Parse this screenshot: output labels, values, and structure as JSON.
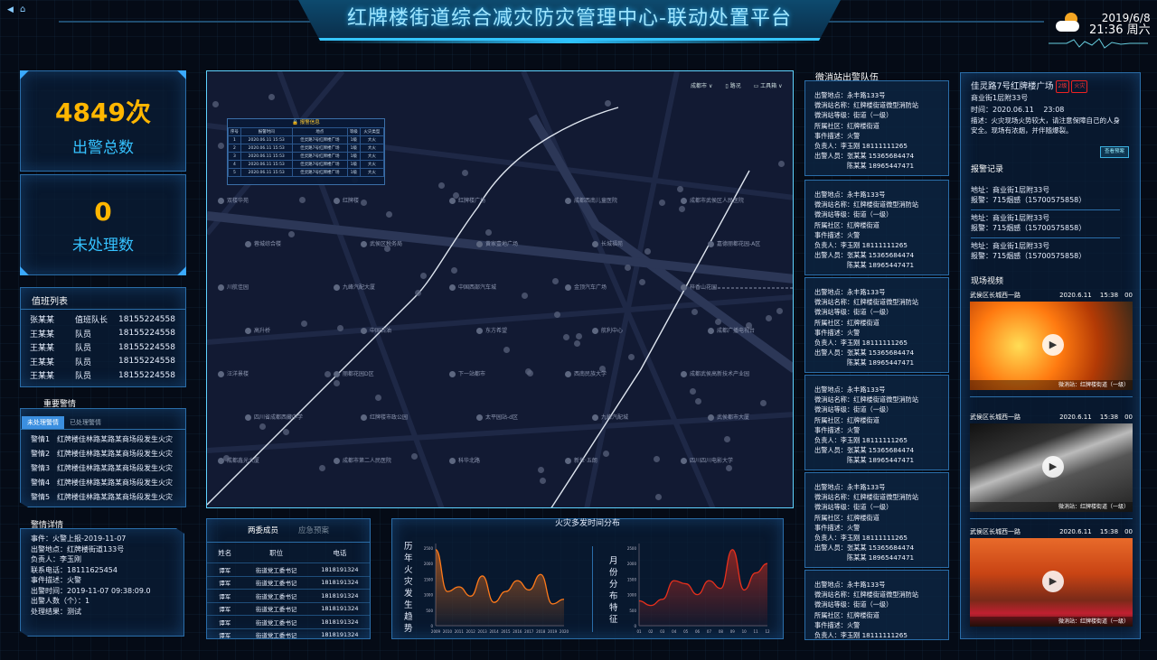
{
  "header": {
    "title": "红牌楼街道综合减灾防灾管理中心-联动处置平台",
    "date": "2019/6/8",
    "time": "21:36 周六",
    "weather_icon": "sun-cloud-icon",
    "nav_icons": [
      "back-icon",
      "home-icon"
    ]
  },
  "kpi": [
    {
      "value": "4849次",
      "label": "出警总数"
    },
    {
      "value": "0",
      "label": "未处理数"
    }
  ],
  "duty": {
    "title": "值班列表",
    "rows": [
      {
        "name": "张某某",
        "role": "值班队长",
        "phone": "18155224558"
      },
      {
        "name": "王某某",
        "role": "队员",
        "phone": "18155224558"
      },
      {
        "name": "王某某",
        "role": "队员",
        "phone": "18155224558"
      },
      {
        "name": "王某某",
        "role": "队员",
        "phone": "18155224558"
      },
      {
        "name": "王某某",
        "role": "队员",
        "phone": "18155224558"
      }
    ]
  },
  "alerts": {
    "title": "重要警情",
    "tabs": [
      "未处理警情",
      "已处理警情"
    ],
    "active_tab": 0,
    "items": [
      {
        "id": "警情1",
        "text": "红牌楼佳林路某路某商场段发生火灾"
      },
      {
        "id": "警情2",
        "text": "红牌楼佳林路某路某商场段发生火灾"
      },
      {
        "id": "警情3",
        "text": "红牌楼佳林路某路某商场段发生火灾"
      },
      {
        "id": "警情4",
        "text": "红牌楼佳林路某路某商场段发生火灾"
      },
      {
        "id": "警情5",
        "text": "红牌楼佳林路某路某商场段发生火灾"
      }
    ]
  },
  "detail": {
    "title": "警情详情",
    "lines": [
      "事件：火警上报-2019-11-07",
      "出警地点：红牌楼街道133号",
      "负责人：李玉刚",
      "联系电话：18111625454",
      "事件描述：火警",
      "出警时间：2019-11-07 09:38:09.0",
      "出警人数（个）：1",
      "处理结果：测试"
    ]
  },
  "map": {
    "controls": {
      "city": "成都市",
      "city_caret": "∨",
      "layers": "路况",
      "toolbox": "工具箱"
    },
    "popup": {
      "title": "报警信息",
      "columns": [
        "序号",
        "报警时间",
        "地点",
        "等级",
        "火灾类型"
      ],
      "rows": [
        [
          "1",
          "2020.06.11 15:53",
          "佳灵路7号红牌楼广场",
          "1级",
          "大火"
        ],
        [
          "2",
          "2020.06.11 15:53",
          "佳灵路7号红牌楼广场",
          "1级",
          "大火"
        ],
        [
          "3",
          "2020.06.11 15:53",
          "佳灵路7号红牌楼广场",
          "1级",
          "大火"
        ],
        [
          "4",
          "2020.06.11 15:53",
          "佳灵路7号红牌楼广场",
          "1级",
          "大火"
        ],
        [
          "5",
          "2020.06.11 15:53",
          "佳灵路7号红牌楼广场",
          "1级",
          "大火"
        ]
      ]
    },
    "labels": [
      "双楼华苑",
      "红牌楼",
      "红牌楼广场",
      "成都西南儿童医院",
      "成都市武侯区人民医院",
      "蓉城综合楼",
      "武侯区税务局",
      "黄家壹地广场",
      "长城福苑",
      "嘉德丽都花园-A区",
      "川航佳园",
      "九峰汽配大厦",
      "中国西部汽车城",
      "金顶汽车广场",
      "梓香山花园",
      "高升桥",
      "中国石油",
      "东方希望",
      "航利中心",
      "成都广播电视台",
      "汪洋景楼",
      "丽都花园D区",
      "下一站都市",
      "西南民族大学",
      "成都武侯高新技术产业园",
      "四川省成都西藏中学",
      "红牌楼市政公园",
      "太平园站-d区",
      "九峰汽配城",
      "武侯都市大厦",
      "成都鑫光大厦",
      "成都市第二人民医院",
      "科华北路",
      "新世·五朗",
      "四川四川电影大学"
    ]
  },
  "committee": {
    "tabs": [
      "两委成员",
      "应急预案"
    ],
    "active_tab": 0,
    "columns": [
      "姓名",
      "职位",
      "电话"
    ],
    "rows": [
      [
        "谭军",
        "街道党工委书记",
        "1818191324"
      ],
      [
        "谭军",
        "街道党工委书记",
        "1818191324"
      ],
      [
        "谭军",
        "街道党工委书记",
        "1818191324"
      ],
      [
        "谭军",
        "街道党工委书记",
        "1818191324"
      ],
      [
        "谭军",
        "街道党工委书记",
        "1818191324"
      ],
      [
        "谭军",
        "街道党工委书记",
        "1818191324"
      ]
    ]
  },
  "fire_section": {
    "title": "火灾多发时间分布"
  },
  "chart_data": [
    {
      "type": "area",
      "title": "历年火灾发生趋势",
      "x": [
        "2009",
        "2010",
        "2011",
        "2012",
        "2013",
        "2014",
        "2015",
        "2016",
        "2017",
        "2018",
        "2019",
        "2020"
      ],
      "values": [
        2450,
        1100,
        1250,
        950,
        1600,
        750,
        1100,
        1450,
        1150,
        1650,
        700,
        850
      ],
      "ylim": [
        0,
        2500
      ],
      "yticks": [
        "0",
        "500",
        "1000",
        "1500",
        "2000",
        "2500"
      ],
      "color": "#ff7a1a",
      "grid": false
    },
    {
      "type": "area",
      "title": "月份分布特征",
      "x": [
        "01",
        "02",
        "03",
        "04",
        "05",
        "06",
        "07",
        "08",
        "09",
        "10",
        "11",
        "12"
      ],
      "values": [
        800,
        650,
        850,
        1450,
        1350,
        1000,
        1450,
        1200,
        2450,
        1150,
        1700,
        2000
      ],
      "ylim": [
        0,
        2500
      ],
      "yticks": [
        "0",
        "500",
        "1000",
        "1500",
        "2000",
        "2500"
      ],
      "color": "#e8301c",
      "grid": false
    }
  ],
  "stations": {
    "title": "微消站出警队伍",
    "items": [
      {
        "lines": [
          "出警地点：永丰路133号",
          "微消站名称：红牌楼街道微型消防站",
          "微消站等级：街道（一级）",
          "所属社区：红牌楼街道",
          "事件描述：火警",
          "负责人：李玉刚 18111111265",
          "出警人员：张某某 15365684474",
          "　　　　　陈某某 18965447471"
        ]
      },
      {
        "lines": [
          "出警地点：永丰路133号",
          "微消站名称：红牌楼街道微型消防站",
          "微消站等级：街道（一级）",
          "所属社区：红牌楼街道",
          "事件描述：火警",
          "负责人：李玉刚 18111111265",
          "出警人员：张某某 15365684474",
          "　　　　　陈某某 18965447471"
        ]
      },
      {
        "lines": [
          "出警地点：永丰路133号",
          "微消站名称：红牌楼街道微型消防站",
          "微消站等级：街道（一级）",
          "所属社区：红牌楼街道",
          "事件描述：火警",
          "负责人：李玉刚 18111111265",
          "出警人员：张某某 15365684474",
          "　　　　　陈某某 18965447471"
        ]
      },
      {
        "lines": [
          "出警地点：永丰路133号",
          "微消站名称：红牌楼街道微型消防站",
          "微消站等级：街道（一级）",
          "所属社区：红牌楼街道",
          "事件描述：火警",
          "负责人：李玉刚 18111111265",
          "出警人员：张某某 15365684474",
          "　　　　　陈某某 18965447471"
        ]
      },
      {
        "lines": [
          "出警地点：永丰路133号",
          "微消站名称：红牌楼街道微型消防站",
          "微消站等级：街道（一级）",
          "所属社区：红牌楼街道",
          "事件描述：火警",
          "负责人：李玉刚 18111111265",
          "出警人员：张某某 15365684474",
          "　　　　　陈某某 18965447471"
        ]
      },
      {
        "lines": [
          "出警地点：永丰路133号",
          "微消站名称：红牌楼街道微型消防站",
          "微消站等级：街道（一级）",
          "所属社区：红牌楼街道",
          "事件描述：火警",
          "负责人：李玉刚 18111111265"
        ]
      }
    ]
  },
  "incident": {
    "title": "佳灵路7号红牌楼广场",
    "badges": [
      "2级",
      "火灾"
    ],
    "address": "商业街1层附33号",
    "time": "时间：2020.06.11　 23:08",
    "desc": "描述：火灾现场火势较大，请注意保障自己的人身安全。现场有浓烟，并伴随爆裂。",
    "plan_button": "查看预案"
  },
  "reports": {
    "title": "报警记录",
    "items": [
      {
        "addr": "地址：商业街1层附33号",
        "call": "报警：715烟感（15700575858）"
      },
      {
        "addr": "地址：商业街1层附33号",
        "call": "报警：715烟感（15700575858）"
      },
      {
        "addr": "地址：商业街1层附33号",
        "call": "报警：715烟感（15700575858）"
      }
    ]
  },
  "videos": {
    "title": "现场视频",
    "items": [
      {
        "place": "武侯区长城西一路",
        "time": "2020.6.11　 15:38　00",
        "caption": "微消站：红牌楼街道（一级）"
      },
      {
        "place": "武侯区长城西一路",
        "time": "2020.6.11　 15:38　00",
        "caption": "微消站：红牌楼街道（一级）"
      },
      {
        "place": "武侯区长城西一路",
        "time": "2020.6.11　 15:38　00",
        "caption": "微消站：红牌楼街道（一级）"
      }
    ]
  }
}
